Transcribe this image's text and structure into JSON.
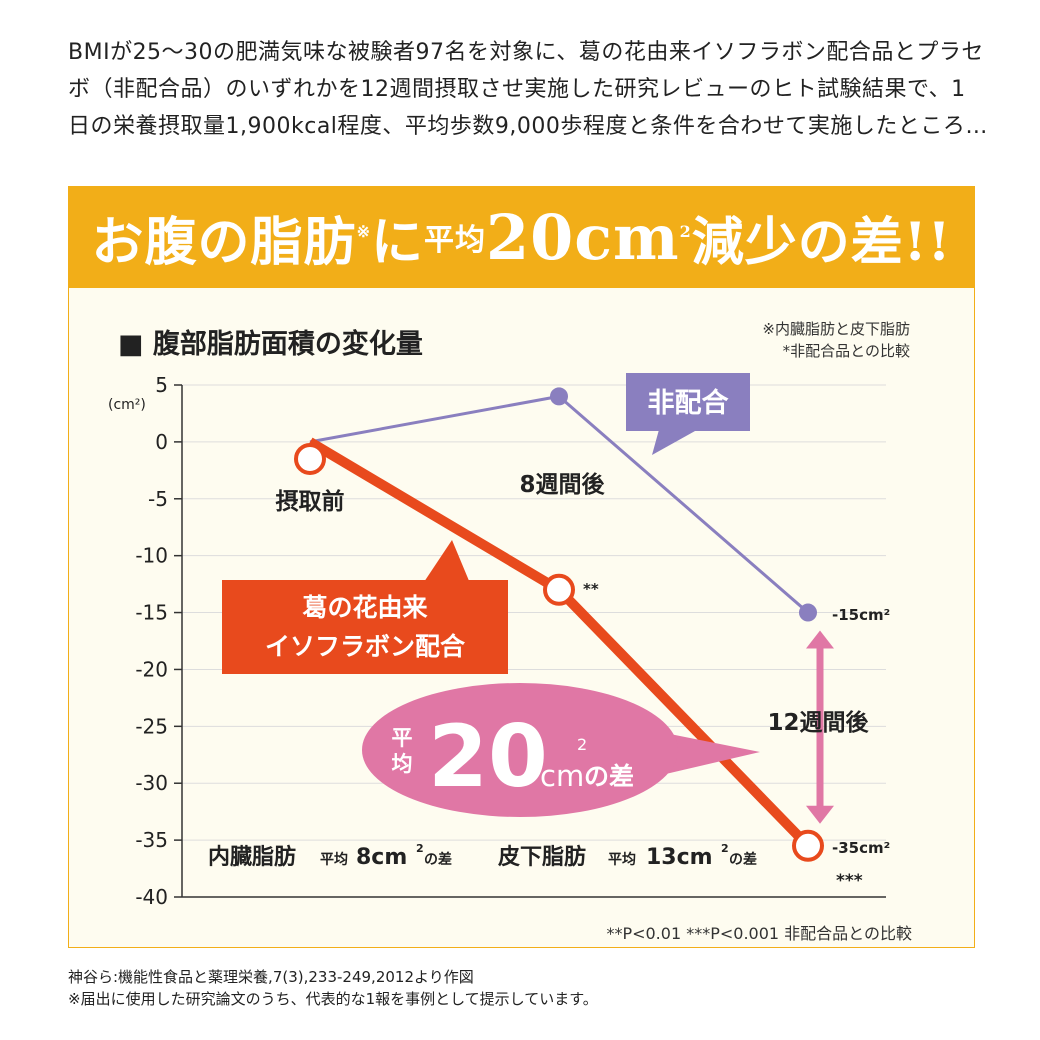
{
  "intro_text": "BMIが25〜30の肥満気味な被験者97名を対象に、葛の花由来イソフラボン配合品とプラセボ（非配合品）のいずれかを12週間摂取させ実施した研究レビューのヒト試験結果で、1日の栄養摂取量1,900kcal程度、平均歩数9,000歩程度と条件を合わせて実施したところ…",
  "banner": {
    "part1": "お腹の脂肪",
    "mark": "※",
    "part2": "に",
    "avg_small": "平均",
    "value": "20cm",
    "sup": "2",
    "part3": "減少",
    "part4": "の差!!"
  },
  "chart_heading": "■ 腹部脂肪面積の変化量",
  "note_right": [
    "※内臓脂肪と皮下脂肪",
    "*非配合品との比較"
  ],
  "unit_label": "(cm²)",
  "chart_data": {
    "type": "line",
    "title": "腹部脂肪面積の変化量",
    "ylabel": "(cm²)",
    "ylim": [
      -40,
      5
    ],
    "yticks": [
      5,
      0,
      -5,
      -10,
      -15,
      -20,
      -25,
      -30,
      -35,
      -40
    ],
    "grid": true,
    "x": [
      "摂取前",
      "8週間後",
      "12週間後"
    ],
    "series": [
      {
        "name": "非配合",
        "color": "#8a7fbf",
        "values": [
          0,
          4,
          -15
        ]
      },
      {
        "name": "葛の花由来イソフラボン配合",
        "color": "#e84a1d",
        "values": [
          -1.5,
          -13,
          -35.5
        ]
      }
    ],
    "point_labels": {
      "active_8w": "**",
      "placebo_12w": "-15cm²",
      "active_12w": "-35cm²",
      "active_12w_sig": "***"
    },
    "annotations": {
      "diff_small_avg": "平均",
      "diff_value": "20",
      "diff_unit": "cm",
      "diff_sup": "2",
      "diff_suffix": "の差",
      "visceral": "内臓脂肪",
      "visceral_avg": "平均",
      "visceral_value": "8cm",
      "visceral_suffix": "の差",
      "subcut": "皮下脂肪",
      "subcut_avg": "平均",
      "subcut_value": "13cm",
      "subcut_suffix": "の差",
      "sq": "2"
    }
  },
  "chart_footnote": "**P<0.01 ***P<0.001 非配合品との比較",
  "source_lines": [
    "神谷ら:機能性食品と薬理栄養,7(3),233-249,2012より作図",
    "※届出に使用した研究論文のうち、代表的な1報を事例として提示しています。"
  ],
  "colors": {
    "banner": "#f2ae18",
    "active": "#e84a1d",
    "placebo": "#8a7fbf",
    "diff": "#e077a5"
  }
}
